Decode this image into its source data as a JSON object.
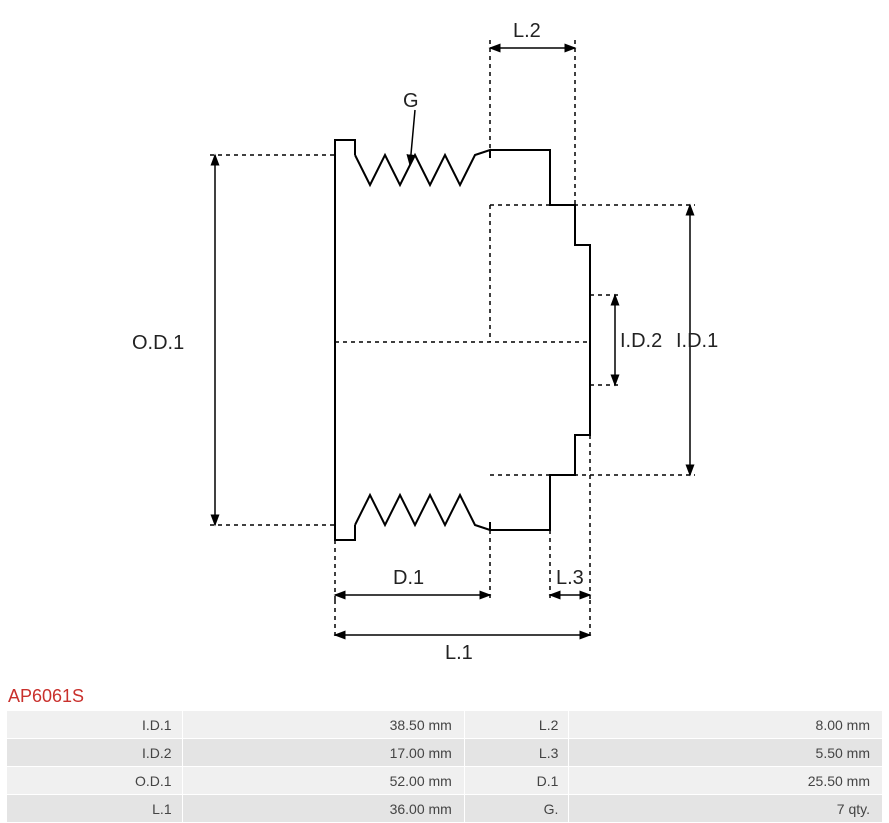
{
  "part_title": "AP6061S",
  "diagram": {
    "labels": {
      "od1": "O.D.1",
      "id1": "I.D.1",
      "id2": "I.D.2",
      "l1": "L.1",
      "l2": "L.2",
      "l3": "L.3",
      "d1": "D.1",
      "g": "G"
    },
    "colors": {
      "stroke": "#000000",
      "dash": "#000000",
      "title": "#c9302c",
      "bg": "#ffffff"
    },
    "stroke_width_solid": 2,
    "stroke_width_dim": 1.5,
    "dash_pattern": "4 4",
    "label_fontsize": 20
  },
  "specs": [
    {
      "k1": "I.D.1",
      "v1": "38.50 mm",
      "k2": "L.2",
      "v2": "8.00 mm"
    },
    {
      "k1": "I.D.2",
      "v1": "17.00 mm",
      "k2": "L.3",
      "v2": "5.50 mm"
    },
    {
      "k1": "O.D.1",
      "v1": "52.00 mm",
      "k2": "D.1",
      "v2": "25.50 mm"
    },
    {
      "k1": "L.1",
      "v1": "36.00 mm",
      "k2": "G.",
      "v2": "7 qty."
    }
  ],
  "table_style": {
    "row_bg_odd": "#f0f0f0",
    "row_bg_even": "#e4e4e4",
    "border_color": "#ffffff",
    "font_size": 14,
    "text_color": "#444444"
  }
}
